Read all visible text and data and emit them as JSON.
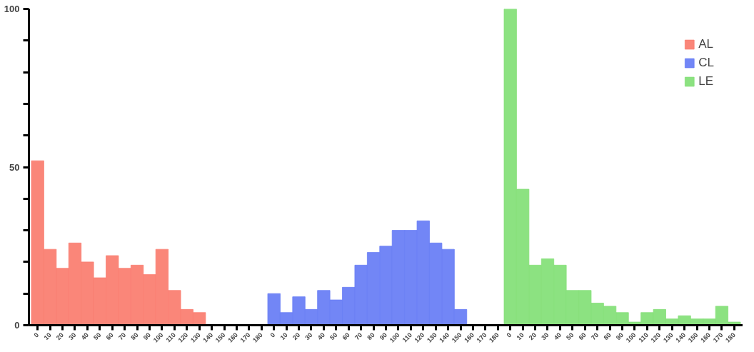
{
  "chart_data": {
    "type": "bar",
    "categories": [
      "0",
      "10",
      "20",
      "30",
      "40",
      "50",
      "60",
      "70",
      "80",
      "90",
      "100",
      "110",
      "120",
      "130",
      "140",
      "150",
      "160",
      "170",
      "180",
      "0",
      "10",
      "20",
      "30",
      "40",
      "50",
      "60",
      "70",
      "80",
      "90",
      "100",
      "110",
      "120",
      "130",
      "140",
      "150",
      "160",
      "170",
      "180",
      "0",
      "10",
      "20",
      "30",
      "40",
      "50",
      "60",
      "70",
      "80",
      "90",
      "100",
      "110",
      "120",
      "130",
      "140",
      "150",
      "160",
      "170",
      "180"
    ],
    "series": [
      {
        "name": "AL",
        "color": "#fa7f72",
        "values": [
          52,
          24,
          18,
          26,
          20,
          15,
          22,
          18,
          19,
          16,
          24,
          11,
          5,
          4,
          0,
          0,
          0,
          0,
          0,
          null,
          null,
          null,
          null,
          null,
          null,
          null,
          null,
          null,
          null,
          null,
          null,
          null,
          null,
          null,
          null,
          null,
          null,
          null,
          null,
          null,
          null,
          null,
          null,
          null,
          null,
          null,
          null,
          null,
          null,
          null,
          null,
          null,
          null,
          null,
          null,
          null,
          null
        ]
      },
      {
        "name": "CL",
        "color": "#6a7ff5",
        "values": [
          null,
          null,
          null,
          null,
          null,
          null,
          null,
          null,
          null,
          null,
          null,
          null,
          null,
          null,
          null,
          null,
          null,
          null,
          null,
          10,
          4,
          9,
          5,
          11,
          8,
          12,
          19,
          23,
          25,
          30,
          30,
          33,
          26,
          24,
          5,
          0,
          0,
          0,
          null,
          null,
          null,
          null,
          null,
          null,
          null,
          null,
          null,
          null,
          null,
          null,
          null,
          null,
          null,
          null,
          null,
          null,
          null
        ]
      },
      {
        "name": "LE",
        "color": "#86e07a",
        "values": [
          null,
          null,
          null,
          null,
          null,
          null,
          null,
          null,
          null,
          null,
          null,
          null,
          null,
          null,
          null,
          null,
          null,
          null,
          null,
          null,
          null,
          null,
          null,
          null,
          null,
          null,
          null,
          null,
          null,
          null,
          null,
          null,
          null,
          null,
          null,
          null,
          null,
          null,
          100,
          43,
          19,
          21,
          19,
          11,
          11,
          7,
          6,
          4,
          1,
          4,
          5,
          2,
          3,
          2,
          2,
          6,
          1
        ]
      }
    ],
    "ylim": [
      0,
      100
    ],
    "yticks": [
      0,
      {
        "value": 10,
        "label": null
      },
      {
        "value": 20,
        "label": null
      },
      {
        "value": 30,
        "label": null
      },
      {
        "value": 40,
        "label": null
      },
      50,
      {
        "value": 60,
        "label": null
      },
      {
        "value": 70,
        "label": null
      },
      {
        "value": 80,
        "label": null
      },
      {
        "value": 90,
        "label": null
      },
      100
    ],
    "grid": false,
    "legend": "top right"
  }
}
